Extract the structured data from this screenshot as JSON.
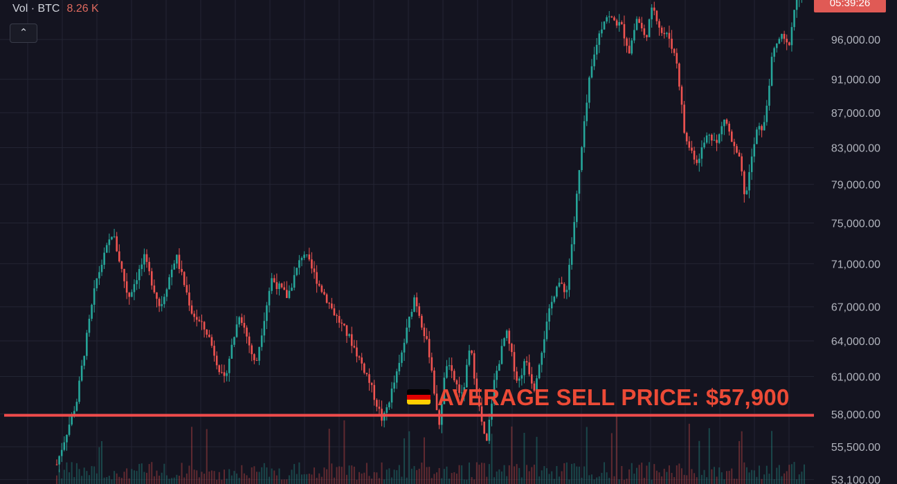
{
  "legend": {
    "label": "Vol · BTC",
    "value": "8.26 K"
  },
  "collapse_button": {
    "icon": "chevron-up-icon",
    "glyph": "⌃"
  },
  "last_price_label": "05:39:26",
  "annotation": {
    "text": "AVERAGE SELL PRICE: $57,900",
    "flag": "germany-flag-icon"
  },
  "colors": {
    "up": "#26a69a",
    "down": "#ef5350",
    "line": "#ef4b4b",
    "grid": "#232533",
    "axis_text": "#b2b5be",
    "annotation": "#ec4a36"
  },
  "chart_data": {
    "type": "candlestick",
    "y_axis": {
      "tick_labels": [
        "96,000.00",
        "91,000.00",
        "87,000.00",
        "83,000.00",
        "79,000.00",
        "75,000.00",
        "71,000.00",
        "67,000.00",
        "64,000.00",
        "61,000.00",
        "58,000.00",
        "55,500.00",
        "53,100.00"
      ],
      "tick_values": [
        96000,
        91000,
        87000,
        83000,
        79000,
        75000,
        71000,
        67000,
        64000,
        61000,
        58000,
        55500,
        53100
      ],
      "scale": "log",
      "range": [
        52200,
        102000
      ]
    },
    "horizontal_line": {
      "value": 57900,
      "label": "AVERAGE SELL PRICE: $57,900"
    },
    "close_path": [
      [
        0,
        54200
      ],
      [
        5,
        59000
      ],
      [
        10,
        69500
      ],
      [
        14,
        74100
      ],
      [
        18,
        67800
      ],
      [
        22,
        71500
      ],
      [
        26,
        66900
      ],
      [
        30,
        71800
      ],
      [
        34,
        66500
      ],
      [
        38,
        64600
      ],
      [
        42,
        60500
      ],
      [
        46,
        66500
      ],
      [
        50,
        61800
      ],
      [
        54,
        69600
      ],
      [
        58,
        67900
      ],
      [
        62,
        72200
      ],
      [
        66,
        69000
      ],
      [
        70,
        66300
      ],
      [
        74,
        64000
      ],
      [
        78,
        61100
      ],
      [
        82,
        57400
      ],
      [
        86,
        61700
      ],
      [
        90,
        68000
      ],
      [
        94,
        62500
      ],
      [
        96,
        56800
      ],
      [
        98,
        62100
      ],
      [
        102,
        59300
      ],
      [
        104,
        63500
      ],
      [
        106,
        58900
      ],
      [
        108,
        55400
      ],
      [
        110,
        60500
      ],
      [
        113,
        64800
      ],
      [
        116,
        60400
      ],
      [
        118,
        62500
      ],
      [
        120,
        60000
      ],
      [
        124,
        66700
      ],
      [
        126,
        69500
      ],
      [
        128,
        68000
      ],
      [
        130,
        74500
      ],
      [
        134,
        91000
      ],
      [
        136,
        96000
      ],
      [
        138,
        99200
      ],
      [
        142,
        97800
      ],
      [
        144,
        94500
      ],
      [
        146,
        99000
      ],
      [
        148,
        96000
      ],
      [
        150,
        100500
      ],
      [
        152,
        97000
      ],
      [
        154,
        96300
      ],
      [
        156,
        93000
      ],
      [
        158,
        84000
      ],
      [
        161,
        81500
      ],
      [
        164,
        84800
      ],
      [
        166,
        83400
      ],
      [
        168,
        86500
      ],
      [
        170,
        83300
      ],
      [
        172,
        81200
      ],
      [
        173,
        77300
      ],
      [
        176,
        84800
      ],
      [
        178,
        85600
      ],
      [
        180,
        94000
      ],
      [
        182,
        96500
      ],
      [
        184,
        95000
      ],
      [
        186,
        101500
      ],
      [
        188,
        102300
      ]
    ],
    "n_candles": 300
  }
}
